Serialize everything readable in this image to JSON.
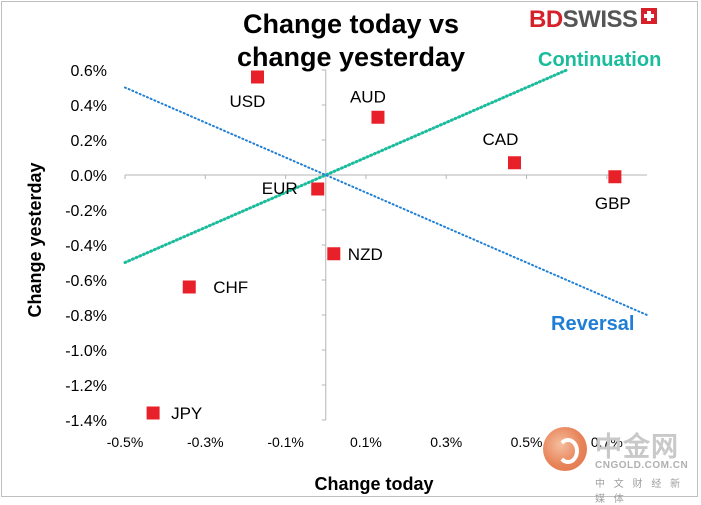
{
  "title": "Change today vs change yesterday",
  "title_lines": [
    "Change today vs",
    "change yesterday"
  ],
  "brand": {
    "part1": "BD",
    "part2": "SWISS"
  },
  "watermark": {
    "main": "中金网",
    "site": "CNGOLD.COM.CN",
    "sub": "中 文 财 经 新 媒 体"
  },
  "colors": {
    "marker": "#e8202a",
    "continuation": "#1abc9c",
    "reversal": "#1f7fd6"
  },
  "chart_data": {
    "type": "scatter",
    "title": "Change today vs change yesterday",
    "xlabel": "Change today",
    "ylabel": "Change yesterday",
    "xlim": [
      -0.5,
      0.8
    ],
    "ylim": [
      -1.4,
      0.6
    ],
    "x_ticks": [
      "-0.5%",
      "-0.3%",
      "-0.1%",
      "0.1%",
      "0.3%",
      "0.5%",
      "0.7%"
    ],
    "y_ticks": [
      "0.6%",
      "0.4%",
      "0.2%",
      "0.0%",
      "-0.2%",
      "-0.4%",
      "-0.6%",
      "-0.8%",
      "-1.0%",
      "-1.2%",
      "-1.4%"
    ],
    "grid": false,
    "points": [
      {
        "label": "USD",
        "x": -0.17,
        "y": 0.56
      },
      {
        "label": "AUD",
        "x": 0.13,
        "y": 0.33
      },
      {
        "label": "CAD",
        "x": 0.47,
        "y": 0.07
      },
      {
        "label": "GBP",
        "x": 0.72,
        "y": -0.01
      },
      {
        "label": "EUR",
        "x": -0.02,
        "y": -0.08
      },
      {
        "label": "NZD",
        "x": 0.02,
        "y": -0.45
      },
      {
        "label": "CHF",
        "x": -0.34,
        "y": -0.64
      },
      {
        "label": "JPY",
        "x": -0.43,
        "y": -1.36
      }
    ],
    "lines": [
      {
        "name": "Continuation",
        "from": [
          -0.5,
          -0.5
        ],
        "to": [
          0.6,
          0.6
        ]
      },
      {
        "name": "Reversal",
        "from": [
          -0.5,
          0.5
        ],
        "to": [
          0.8,
          -0.8
        ]
      }
    ]
  }
}
